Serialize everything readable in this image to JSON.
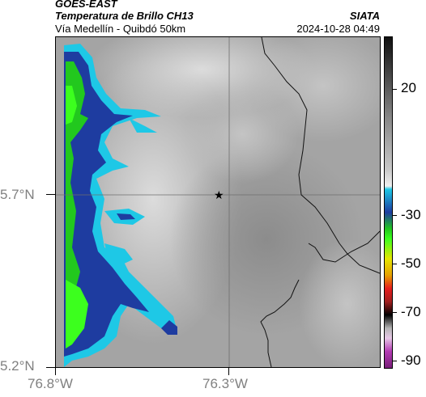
{
  "header": {
    "satellite": "GOES-EAST",
    "product": "Temperatura de Brillo CH13",
    "agency": "SIATA",
    "region": "Vía Medellín - Quibdó 50km",
    "timestamp": "2024-10-28 04:49"
  },
  "map": {
    "lat_ticks": [
      "5.7°N",
      "5.2°N"
    ],
    "lon_ticks": [
      "76.8°W",
      "76.3°W"
    ],
    "marker": "star-marker"
  },
  "colorbar": {
    "labels": [
      "20",
      "-30",
      "-50",
      "-70",
      "-90"
    ],
    "colors": {
      "warm_gray": "#9c9c9c",
      "cold_cyan": "#1ec8e6",
      "cold_blue": "#1e3ca0",
      "cold_green": "#22c81e",
      "bright_green": "#3cff1e",
      "yellow": "#e6e600",
      "red": "#e61e1e",
      "black": "#000000",
      "magenta": "#b43cb4"
    }
  }
}
